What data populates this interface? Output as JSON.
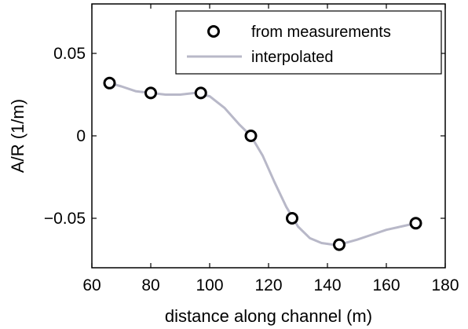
{
  "chart_data": {
    "type": "line",
    "xlabel": "distance along channel (m)",
    "ylabel": "A/R (1/m)",
    "xlim": [
      60,
      180
    ],
    "ylim": [
      -0.08,
      0.08
    ],
    "x_ticks": [
      60,
      80,
      100,
      120,
      140,
      160,
      180
    ],
    "x_tick_labels": [
      "60",
      "80",
      "100",
      "120",
      "140",
      "160",
      "180"
    ],
    "y_ticks": [
      -0.05,
      0,
      0.05
    ],
    "y_tick_labels": [
      "−0.05",
      "0",
      "0.05"
    ],
    "grid": false,
    "legend": {
      "placement": "top-right",
      "entries": [
        "from measurements",
        "interpolated"
      ]
    },
    "series": [
      {
        "name": "from measurements",
        "style": "markers",
        "marker": "circle",
        "color": "#000000",
        "x": [
          66,
          80,
          97,
          114,
          128,
          144,
          170
        ],
        "y": [
          0.032,
          0.026,
          0.026,
          0.0,
          -0.05,
          -0.066,
          -0.053
        ]
      },
      {
        "name": "interpolated",
        "style": "line",
        "color": "#b8b8c8",
        "x": [
          66,
          70,
          75,
          80,
          85,
          90,
          95,
          100,
          105,
          110,
          114,
          118,
          122,
          126,
          130,
          134,
          138,
          142,
          144,
          150,
          155,
          160,
          165,
          170
        ],
        "y": [
          0.032,
          0.03,
          0.027,
          0.026,
          0.025,
          0.025,
          0.026,
          0.024,
          0.017,
          0.007,
          0.0,
          -0.012,
          -0.028,
          -0.043,
          -0.055,
          -0.062,
          -0.065,
          -0.066,
          -0.066,
          -0.063,
          -0.06,
          -0.057,
          -0.055,
          -0.053
        ]
      }
    ]
  }
}
